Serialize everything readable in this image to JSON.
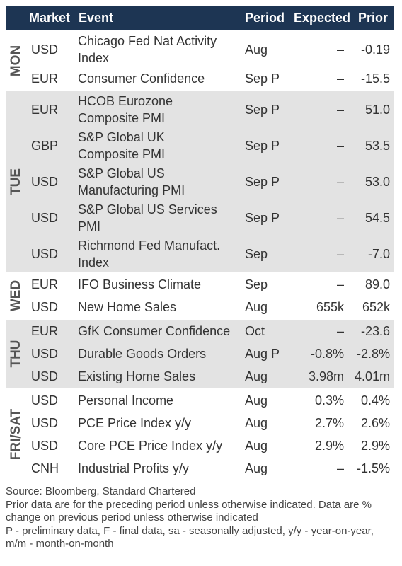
{
  "header": {
    "columns": [
      "Market",
      "Event",
      "Period",
      "Expected",
      "Prior"
    ]
  },
  "days": [
    {
      "label": "MON",
      "rows": [
        {
          "market": "USD",
          "event": [
            "Chicago Fed Nat Activity",
            "Index"
          ],
          "period": "Aug",
          "expected": "–",
          "prior": "-0.19"
        },
        {
          "market": "EUR",
          "event": [
            "Consumer Confidence"
          ],
          "period": "Sep P",
          "expected": "–",
          "prior": "-15.5"
        }
      ]
    },
    {
      "label": "TUE",
      "rows": [
        {
          "market": "EUR",
          "event": [
            "HCOB Eurozone",
            "Composite PMI"
          ],
          "period": "Sep P",
          "expected": "–",
          "prior": "51.0"
        },
        {
          "market": "GBP",
          "event": [
            "S&P Global UK",
            "Composite PMI"
          ],
          "period": "Sep P",
          "expected": "–",
          "prior": "53.5"
        },
        {
          "market": "USD",
          "event": [
            "S&P Global US",
            "Manufacturing PMI"
          ],
          "period": "Sep P",
          "expected": "–",
          "prior": "53.0"
        },
        {
          "market": "USD",
          "event": [
            "S&P Global US Services",
            "PMI"
          ],
          "period": "Sep P",
          "expected": "–",
          "prior": "54.5"
        },
        {
          "market": "USD",
          "event": [
            "Richmond Fed Manufact.",
            "Index"
          ],
          "period": "Sep",
          "expected": "–",
          "prior": "-7.0"
        }
      ]
    },
    {
      "label": "WED",
      "rows": [
        {
          "market": "EUR",
          "event": [
            "IFO Business Climate"
          ],
          "period": "Sep",
          "expected": "–",
          "prior": "89.0"
        },
        {
          "market": "USD",
          "event": [
            "New Home Sales"
          ],
          "period": "Aug",
          "expected": "655k",
          "prior": "652k"
        }
      ]
    },
    {
      "label": "THU",
      "rows": [
        {
          "market": "EUR",
          "event": [
            "GfK Consumer Confidence"
          ],
          "period": "Oct",
          "expected": "–",
          "prior": "-23.6"
        },
        {
          "market": "USD",
          "event": [
            "Durable Goods Orders"
          ],
          "period": "Aug P",
          "expected": "-0.8%",
          "prior": "-2.8%"
        },
        {
          "market": "USD",
          "event": [
            "Existing Home Sales"
          ],
          "period": "Aug",
          "expected": "3.98m",
          "prior": "4.01m"
        }
      ]
    },
    {
      "label": "FRI/SAT",
      "rows": [
        {
          "market": "USD",
          "event": [
            "Personal Income"
          ],
          "period": "Aug",
          "expected": "0.3%",
          "prior": "0.4%"
        },
        {
          "market": "USD",
          "event": [
            "PCE Price Index y/y"
          ],
          "period": "Aug",
          "expected": "2.7%",
          "prior": "2.6%"
        },
        {
          "market": "USD",
          "event": [
            "Core PCE Price Index y/y"
          ],
          "period": "Aug",
          "expected": "2.9%",
          "prior": "2.9%"
        },
        {
          "market": "CNH",
          "event": [
            "Industrial Profits y/y"
          ],
          "period": "Aug",
          "expected": "–",
          "prior": "-1.5%"
        }
      ]
    }
  ],
  "footer": [
    "Source: Bloomberg, Standard Chartered",
    "Prior data are for the preceding period unless otherwise indicated. Data are % change on previous period unless otherwise indicated",
    "P - preliminary data, F - final data, sa - seasonally adjusted, y/y - year-on-year, m/m - month-on-month"
  ]
}
